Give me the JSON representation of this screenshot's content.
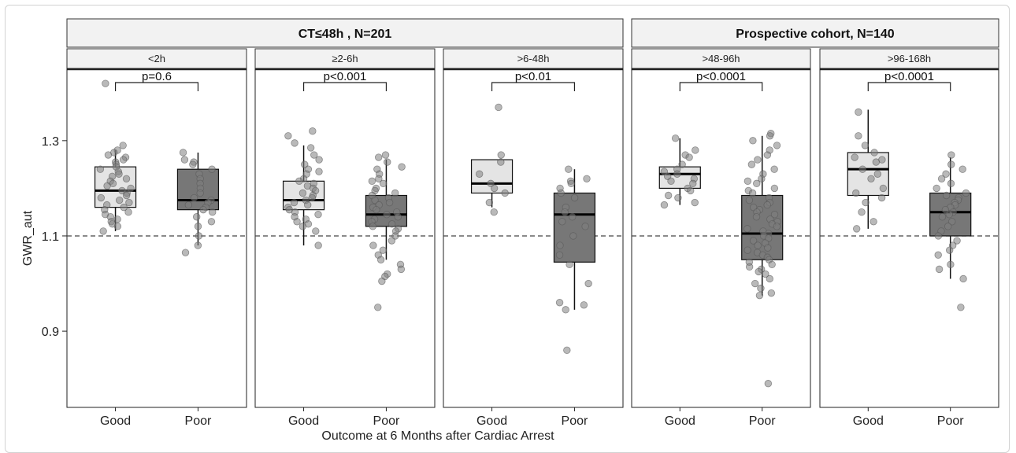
{
  "chart_data": {
    "type": "boxplot",
    "ylabel": "GWR_aut",
    "xlabel": "Outcome at 6 Months after Cardiac Arrest",
    "y_ticks": [
      0.9,
      1.1,
      1.3
    ],
    "y_tick_labels": [
      "0.9",
      "1.1",
      "1.3"
    ],
    "ylim": [
      0.74,
      1.45
    ],
    "reference_line": 1.1,
    "categories": [
      "Good",
      "Poor"
    ],
    "groups": [
      {
        "label": "CT≤48h , N=201",
        "panels": [
          0,
          1,
          2
        ]
      },
      {
        "label": "Prospective cohort, N=140",
        "panels": [
          3,
          4
        ]
      }
    ],
    "panels": [
      {
        "label": "<2h",
        "pvalue": "p=0.6",
        "good": {
          "q1": 1.16,
          "median": 1.195,
          "q3": 1.245,
          "whisker_low": 1.11,
          "whisker_high": 1.28
        },
        "poor": {
          "q1": 1.155,
          "median": 1.175,
          "q3": 1.24,
          "whisker_low": 1.08,
          "whisker_high": 1.275
        },
        "good_points": [
          1.42,
          1.29,
          1.28,
          1.275,
          1.27,
          1.265,
          1.26,
          1.255,
          1.25,
          1.245,
          1.24,
          1.235,
          1.23,
          1.225,
          1.22,
          1.215,
          1.21,
          1.205,
          1.2,
          1.195,
          1.19,
          1.185,
          1.18,
          1.175,
          1.17,
          1.165,
          1.16,
          1.155,
          1.15,
          1.145,
          1.14,
          1.135,
          1.13,
          1.125,
          1.12,
          1.11
        ],
        "poor_points": [
          1.275,
          1.26,
          1.255,
          1.25,
          1.24,
          1.23,
          1.22,
          1.21,
          1.2,
          1.19,
          1.18,
          1.175,
          1.17,
          1.165,
          1.16,
          1.155,
          1.15,
          1.14,
          1.13,
          1.12,
          1.1,
          1.08,
          1.065
        ]
      },
      {
        "label": "≥2-6h",
        "pvalue": "p<0.001",
        "good": {
          "q1": 1.155,
          "median": 1.175,
          "q3": 1.215,
          "whisker_low": 1.08,
          "whisker_high": 1.29
        },
        "poor": {
          "q1": 1.12,
          "median": 1.145,
          "q3": 1.185,
          "whisker_low": 1.05,
          "whisker_high": 1.26
        },
        "good_points": [
          1.32,
          1.31,
          1.295,
          1.285,
          1.27,
          1.26,
          1.25,
          1.24,
          1.235,
          1.23,
          1.22,
          1.215,
          1.21,
          1.205,
          1.2,
          1.195,
          1.19,
          1.185,
          1.18,
          1.175,
          1.17,
          1.165,
          1.16,
          1.155,
          1.15,
          1.145,
          1.14,
          1.135,
          1.13,
          1.125,
          1.12,
          1.11,
          1.08
        ],
        "poor_points": [
          1.27,
          1.265,
          1.255,
          1.245,
          1.24,
          1.23,
          1.22,
          1.215,
          1.21,
          1.2,
          1.195,
          1.19,
          1.185,
          1.18,
          1.175,
          1.17,
          1.165,
          1.16,
          1.155,
          1.15,
          1.145,
          1.14,
          1.135,
          1.13,
          1.125,
          1.12,
          1.115,
          1.11,
          1.1,
          1.09,
          1.08,
          1.07,
          1.06,
          1.05,
          1.04,
          1.03,
          1.02,
          1.015,
          1.005,
          0.95
        ]
      },
      {
        "label": ">6-48h",
        "pvalue": "p<0.01",
        "good": {
          "q1": 1.19,
          "median": 1.21,
          "q3": 1.26,
          "whisker_low": 1.16,
          "whisker_high": 1.26
        },
        "poor": {
          "q1": 1.045,
          "median": 1.145,
          "q3": 1.19,
          "whisker_low": 0.945,
          "whisker_high": 1.24
        },
        "good_points": [
          1.37,
          1.27,
          1.255,
          1.23,
          1.21,
          1.2,
          1.19,
          1.17,
          1.15
        ],
        "poor_points": [
          1.24,
          1.22,
          1.215,
          1.21,
          1.2,
          1.19,
          1.18,
          1.16,
          1.15,
          1.14,
          1.13,
          1.12,
          1.1,
          1.08,
          1.06,
          1.04,
          1.0,
          0.96,
          0.955,
          0.945,
          0.86
        ]
      },
      {
        "label": ">48-96h",
        "pvalue": "p<0.0001",
        "good": {
          "q1": 1.2,
          "median": 1.23,
          "q3": 1.245,
          "whisker_low": 1.165,
          "whisker_high": 1.305
        },
        "poor": {
          "q1": 1.05,
          "median": 1.105,
          "q3": 1.185,
          "whisker_low": 0.975,
          "whisker_high": 1.31
        },
        "good_points": [
          1.305,
          1.28,
          1.27,
          1.265,
          1.25,
          1.24,
          1.235,
          1.23,
          1.225,
          1.22,
          1.215,
          1.21,
          1.2,
          1.195,
          1.185,
          1.18,
          1.17,
          1.165
        ],
        "poor_points": [
          1.315,
          1.31,
          1.3,
          1.29,
          1.28,
          1.27,
          1.26,
          1.25,
          1.24,
          1.23,
          1.22,
          1.215,
          1.21,
          1.2,
          1.195,
          1.19,
          1.18,
          1.175,
          1.17,
          1.165,
          1.16,
          1.155,
          1.15,
          1.145,
          1.14,
          1.135,
          1.13,
          1.125,
          1.12,
          1.115,
          1.11,
          1.105,
          1.1,
          1.095,
          1.09,
          1.085,
          1.08,
          1.075,
          1.07,
          1.065,
          1.06,
          1.055,
          1.05,
          1.045,
          1.04,
          1.035,
          1.03,
          1.025,
          1.02,
          1.01,
          1.0,
          0.99,
          0.98,
          0.975,
          0.79
        ]
      },
      {
        "label": ">96-168h",
        "pvalue": "p<0.0001",
        "good": {
          "q1": 1.185,
          "median": 1.24,
          "q3": 1.275,
          "whisker_low": 1.115,
          "whisker_high": 1.365
        },
        "poor": {
          "q1": 1.1,
          "median": 1.15,
          "q3": 1.19,
          "whisker_low": 1.01,
          "whisker_high": 1.265
        },
        "good_points": [
          1.36,
          1.31,
          1.29,
          1.275,
          1.265,
          1.26,
          1.255,
          1.24,
          1.23,
          1.22,
          1.2,
          1.19,
          1.18,
          1.17,
          1.15,
          1.13,
          1.115
        ],
        "poor_points": [
          1.27,
          1.25,
          1.24,
          1.23,
          1.22,
          1.21,
          1.2,
          1.19,
          1.185,
          1.18,
          1.175,
          1.17,
          1.165,
          1.16,
          1.155,
          1.15,
          1.145,
          1.14,
          1.13,
          1.12,
          1.11,
          1.1,
          1.09,
          1.08,
          1.07,
          1.06,
          1.04,
          1.03,
          1.01,
          0.95
        ]
      }
    ],
    "colors": {
      "good_fill": "#e4e4e4",
      "poor_fill": "#777777",
      "strip_fill": "#f2f2f2",
      "point_fill": "#808080",
      "axis": "#222222"
    }
  }
}
